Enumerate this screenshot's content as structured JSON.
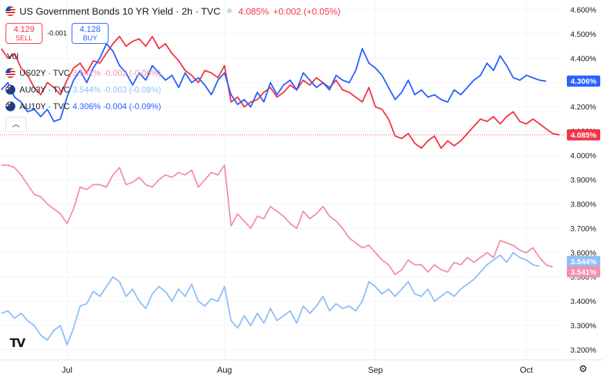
{
  "header": {
    "title": "US Government Bonds 10 YR Yield · 2h · TVC",
    "price": "4.085%",
    "change": "+0.002 (+0.05%)"
  },
  "trade": {
    "sell_price": "4.129",
    "sell_label": "SELL",
    "spread": "-0.001",
    "buy_price": "4.128",
    "buy_label": "BUY"
  },
  "vol_label": "Vol",
  "legend": [
    {
      "symbol": "US02Y · TVC",
      "values": "3.541% -0.002 (-0.06%)",
      "color": "#f48fb1",
      "flag": "us"
    },
    {
      "symbol": "AU03Y · TVC",
      "values": "3.544% -0.003 (-0.08%)",
      "color": "#90bff9",
      "flag": "au"
    },
    {
      "symbol": "AU10Y · TVC",
      "values": "4.306% -0.004 (-0.09%)",
      "color": "#2962ff",
      "flag": "au"
    }
  ],
  "icons": {
    "collapse": "chevron-up-icon",
    "logo": "tradingview-logo",
    "settings": "gear-icon"
  },
  "chart_data": {
    "type": "line",
    "y_axis": {
      "ticks": [
        3.2,
        3.3,
        3.4,
        3.5,
        3.6,
        3.7,
        3.8,
        3.9,
        4.0,
        4.1,
        4.2,
        4.3,
        4.4,
        4.5,
        4.6
      ],
      "tick_labels": [
        "3.200%",
        "3.300%",
        "3.400%",
        "3.500%",
        "3.600%",
        "3.700%",
        "3.800%",
        "3.900%",
        "4.000%",
        "4.100%",
        "4.200%",
        "4.300%",
        "4.400%",
        "4.500%",
        "4.600%"
      ],
      "range": [
        3.16,
        4.64
      ],
      "position": "right"
    },
    "x_axis": {
      "labels": [
        "Jul",
        "Aug",
        "Sep",
        "Oct"
      ],
      "label_index": [
        10,
        34,
        57,
        80
      ]
    },
    "grid": true,
    "last_price_labels": [
      {
        "text": "4.306%",
        "value": 4.306,
        "color": "#2962ff"
      },
      {
        "text": "4.085%",
        "value": 4.085,
        "color": "#f23645"
      },
      {
        "text": "3.544%",
        "value": 3.544,
        "color": "#90bff9"
      },
      {
        "text": "3.541%",
        "value": 3.541,
        "color": "#f48fb1"
      }
    ],
    "current_price_line": 4.085,
    "series": [
      {
        "name": "US10Y",
        "color": "#f23645",
        "values": [
          4.44,
          4.4,
          4.42,
          4.36,
          4.33,
          4.28,
          4.25,
          4.3,
          4.28,
          4.25,
          4.31,
          4.36,
          4.38,
          4.34,
          4.39,
          4.38,
          4.42,
          4.46,
          4.49,
          4.45,
          4.47,
          4.48,
          4.45,
          4.49,
          4.44,
          4.46,
          4.42,
          4.39,
          4.35,
          4.33,
          4.3,
          4.35,
          4.34,
          4.32,
          4.37,
          4.22,
          4.24,
          4.2,
          4.22,
          4.23,
          4.26,
          4.28,
          4.24,
          4.26,
          4.29,
          4.27,
          4.31,
          4.29,
          4.32,
          4.3,
          4.28,
          4.31,
          4.27,
          4.26,
          4.24,
          4.22,
          4.28,
          4.2,
          4.19,
          4.15,
          4.08,
          4.07,
          4.09,
          4.05,
          4.03,
          4.06,
          4.08,
          4.03,
          4.06,
          4.04,
          4.06,
          4.09,
          4.12,
          4.15,
          4.14,
          4.16,
          4.13,
          4.16,
          4.18,
          4.14,
          4.13,
          4.15,
          4.13,
          4.11,
          4.09,
          4.085
        ]
      },
      {
        "name": "AU10Y",
        "color": "#2962ff",
        "values": [
          4.27,
          4.3,
          4.24,
          4.22,
          4.18,
          4.19,
          4.16,
          4.19,
          4.14,
          4.15,
          4.24,
          4.31,
          4.35,
          4.3,
          4.36,
          4.4,
          4.46,
          4.43,
          4.37,
          4.34,
          4.29,
          4.34,
          4.31,
          4.37,
          4.34,
          4.31,
          4.33,
          4.28,
          4.34,
          4.3,
          4.32,
          4.29,
          4.25,
          4.31,
          4.34,
          4.25,
          4.21,
          4.23,
          4.2,
          4.26,
          4.22,
          4.3,
          4.25,
          4.29,
          4.31,
          4.27,
          4.34,
          4.31,
          4.28,
          4.3,
          4.27,
          4.33,
          4.31,
          4.3,
          4.35,
          4.44,
          4.38,
          4.36,
          4.33,
          4.28,
          4.23,
          4.26,
          4.31,
          4.25,
          4.27,
          4.24,
          4.25,
          4.23,
          4.22,
          4.27,
          4.25,
          4.28,
          4.31,
          4.33,
          4.38,
          4.35,
          4.41,
          4.37,
          4.32,
          4.31,
          4.33,
          4.32,
          4.31,
          4.306
        ]
      },
      {
        "name": "US02Y",
        "color": "#f48fb1",
        "values": [
          3.96,
          3.96,
          3.95,
          3.92,
          3.88,
          3.84,
          3.83,
          3.8,
          3.78,
          3.76,
          3.72,
          3.78,
          3.87,
          3.86,
          3.88,
          3.88,
          3.87,
          3.92,
          3.95,
          3.88,
          3.89,
          3.91,
          3.88,
          3.87,
          3.9,
          3.92,
          3.91,
          3.93,
          3.92,
          3.94,
          3.87,
          3.9,
          3.93,
          3.92,
          3.96,
          3.71,
          3.76,
          3.73,
          3.7,
          3.75,
          3.74,
          3.79,
          3.77,
          3.75,
          3.72,
          3.7,
          3.77,
          3.74,
          3.76,
          3.79,
          3.75,
          3.73,
          3.7,
          3.66,
          3.64,
          3.62,
          3.63,
          3.6,
          3.57,
          3.55,
          3.51,
          3.53,
          3.57,
          3.55,
          3.55,
          3.52,
          3.55,
          3.53,
          3.52,
          3.56,
          3.55,
          3.58,
          3.56,
          3.58,
          3.6,
          3.58,
          3.65,
          3.64,
          3.63,
          3.61,
          3.6,
          3.62,
          3.58,
          3.55,
          3.541
        ]
      },
      {
        "name": "AU03Y",
        "color": "#90bff9",
        "values": [
          3.35,
          3.36,
          3.33,
          3.35,
          3.32,
          3.3,
          3.26,
          3.24,
          3.28,
          3.3,
          3.22,
          3.29,
          3.38,
          3.39,
          3.44,
          3.42,
          3.46,
          3.5,
          3.48,
          3.42,
          3.45,
          3.4,
          3.37,
          3.43,
          3.46,
          3.44,
          3.4,
          3.45,
          3.42,
          3.47,
          3.4,
          3.38,
          3.41,
          3.4,
          3.46,
          3.32,
          3.29,
          3.34,
          3.3,
          3.35,
          3.31,
          3.37,
          3.32,
          3.34,
          3.36,
          3.31,
          3.38,
          3.35,
          3.38,
          3.42,
          3.36,
          3.39,
          3.37,
          3.38,
          3.36,
          3.4,
          3.48,
          3.46,
          3.43,
          3.45,
          3.42,
          3.45,
          3.48,
          3.43,
          3.42,
          3.45,
          3.4,
          3.42,
          3.44,
          3.42,
          3.45,
          3.47,
          3.49,
          3.52,
          3.55,
          3.57,
          3.59,
          3.56,
          3.6,
          3.58,
          3.57,
          3.55,
          3.544
        ]
      }
    ]
  }
}
